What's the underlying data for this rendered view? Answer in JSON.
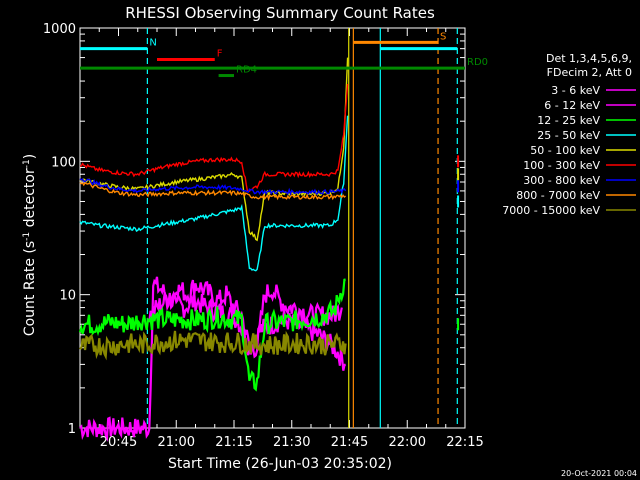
{
  "chart_data": {
    "type": "line",
    "title": "RHESSI Observing Summary Count Rates",
    "xlabel": "Start Time (26-Jun-03 20:35:02)",
    "ylabel_main": "Count Rate (s",
    "ylabel_sup1": "-1",
    "ylabel_mid": " detector",
    "ylabel_sup2": "-1",
    "ylabel_end": ")",
    "yscale": "log",
    "ylim": [
      1,
      1000
    ],
    "xlim_minutes": [
      0,
      100
    ],
    "x_ticks": [
      {
        "m": 10,
        "label": "20:45"
      },
      {
        "m": 25,
        "label": "21:00"
      },
      {
        "m": 40,
        "label": "21:15"
      },
      {
        "m": 55,
        "label": "21:30"
      },
      {
        "m": 70,
        "label": "21:45"
      },
      {
        "m": 85,
        "label": "22:00"
      },
      {
        "m": 100,
        "label": "22:15"
      }
    ],
    "y_ticks": [
      {
        "v": 1,
        "label": "1"
      },
      {
        "v": 10,
        "label": "10"
      },
      {
        "v": 100,
        "label": "100"
      },
      {
        "v": 1000,
        "label": "1000"
      }
    ],
    "legend_header": [
      "Det 1,3,4,5,6,9,",
      "FDecim 2, Att 0"
    ],
    "series": [
      {
        "name": "3 - 6 keV",
        "color": "#ff00ff",
        "x": [
          0,
          18,
          19,
          21,
          24,
          27,
          30,
          33,
          36,
          39,
          41,
          44,
          47,
          50,
          53,
          56,
          59,
          62,
          64,
          66,
          67.5,
          69
        ],
        "y": [
          1,
          1,
          12,
          11,
          9,
          8,
          9,
          8,
          7.5,
          7,
          6.5,
          4,
          5.5,
          6,
          6.5,
          6,
          5.5,
          5,
          4.5,
          4,
          3.5,
          3
        ]
      },
      {
        "name": "6 - 12 keV",
        "color": "#ff00ff",
        "x": [
          18,
          20,
          22,
          24,
          26,
          28,
          30,
          32,
          34,
          36,
          38,
          40,
          42,
          44,
          46,
          48,
          50,
          52,
          54,
          56,
          58,
          60,
          62,
          64,
          66,
          68
        ],
        "y": [
          7,
          8,
          9,
          10,
          11,
          10,
          12,
          11,
          10,
          9,
          10,
          8,
          7,
          4,
          4,
          10,
          11,
          9,
          8,
          8,
          7.5,
          7,
          7,
          7,
          7,
          8
        ]
      },
      {
        "name": "12 - 25 keV",
        "color": "#00ff00",
        "x": [
          0,
          4,
          8,
          12,
          16,
          20,
          24,
          28,
          32,
          36,
          40,
          42,
          44,
          46,
          48,
          50,
          54,
          58,
          62,
          66,
          68,
          69
        ],
        "y": [
          6,
          6,
          6.2,
          6,
          6.5,
          6.5,
          6.5,
          6.5,
          6.5,
          6.8,
          6.5,
          6.5,
          2.2,
          2.2,
          6,
          6.2,
          6.2,
          6.5,
          6.8,
          7.5,
          11,
          13
        ]
      },
      {
        "name": "25 - 50 keV",
        "color": "#00ffff",
        "x": [
          0,
          5,
          10,
          15,
          20,
          25,
          30,
          35,
          40,
          42,
          44,
          46,
          48,
          50,
          55,
          60,
          65,
          67,
          68.5,
          69.5
        ],
        "y": [
          35,
          33,
          32,
          31,
          33,
          35,
          37,
          40,
          43,
          45,
          16,
          15,
          33,
          33,
          33,
          33,
          33,
          37,
          70,
          220
        ]
      },
      {
        "name": "50 - 100 keV",
        "color": "#dddd00",
        "x": [
          0,
          5,
          10,
          15,
          20,
          25,
          30,
          35,
          40,
          42,
          44,
          46,
          48,
          50,
          55,
          60,
          65,
          67,
          68.5,
          69.5
        ],
        "y": [
          74,
          68,
          64,
          62,
          66,
          70,
          73,
          76,
          80,
          75,
          30,
          26,
          58,
          58,
          57,
          57,
          58,
          63,
          130,
          600
        ]
      },
      {
        "name": "100 - 300 keV",
        "color": "#ff0000",
        "x": [
          0,
          5,
          10,
          15,
          20,
          25,
          30,
          35,
          40,
          42,
          43.5,
          46,
          48,
          50,
          55,
          60,
          65,
          67,
          68.5,
          69.5
        ],
        "y": [
          95,
          86,
          82,
          80,
          88,
          95,
          100,
          103,
          103,
          100,
          60,
          65,
          80,
          80,
          80,
          80,
          80,
          85,
          160,
          380
        ]
      },
      {
        "name": "300 - 800 keV",
        "color": "#0000ff",
        "x": [
          0,
          5,
          10,
          15,
          20,
          25,
          30,
          35,
          40,
          42,
          44,
          46,
          48,
          50,
          55,
          60,
          65,
          68,
          69
        ],
        "y": [
          75,
          67,
          62,
          60,
          62,
          63,
          64,
          64,
          63,
          62,
          60,
          59,
          59,
          59,
          59,
          59,
          59,
          60,
          60
        ]
      },
      {
        "name": "800 - 7000 keV",
        "color": "#ff8800",
        "x": [
          0,
          5,
          10,
          15,
          20,
          25,
          30,
          35,
          40,
          42,
          44,
          46,
          48,
          50,
          55,
          60,
          65,
          68,
          69
        ],
        "y": [
          70,
          63,
          58,
          56,
          57,
          58,
          58,
          58,
          58,
          57,
          55,
          54,
          54,
          54,
          54,
          54,
          54,
          55,
          55
        ]
      },
      {
        "name": "7000 - 15000 keV",
        "color": "#888800",
        "x": [
          0,
          4,
          8,
          12,
          16,
          20,
          24,
          28,
          32,
          36,
          40,
          44,
          48,
          52,
          56,
          60,
          64,
          68,
          69
        ],
        "y": [
          4,
          4.2,
          4.1,
          4.3,
          4.2,
          4.4,
          4.5,
          4.6,
          4.5,
          4.4,
          4.4,
          4.3,
          4.2,
          4.2,
          4.3,
          4.3,
          4.2,
          4.3,
          4.3
        ]
      }
    ],
    "state_bars": [
      {
        "label": "N",
        "color": "#00ffff",
        "x0": 0,
        "x1": 17.5,
        "value": 700
      },
      {
        "label": "",
        "color": "#00ffff",
        "x0": 78,
        "x1": 98,
        "value": 700
      },
      {
        "label": "F",
        "color": "#ff0000",
        "x0": 20,
        "x1": 35,
        "value": 580
      },
      {
        "label": "RD0",
        "color": "#008800",
        "x0": 0,
        "x1": 100,
        "value": 500
      },
      {
        "label": "RD4",
        "color": "#008800",
        "x0": 36,
        "x1": 40,
        "value": 440
      },
      {
        "label": "S",
        "color": "#ff8800",
        "x0": 71,
        "x1": 93,
        "value": 780
      }
    ],
    "verticals": [
      {
        "m": 17.5,
        "color": "#00ffff",
        "style": "dashed"
      },
      {
        "m": 69.8,
        "color": "#dddd00",
        "style": "solid"
      },
      {
        "m": 71,
        "color": "#ff8800",
        "style": "solid"
      },
      {
        "m": 78,
        "color": "#00ffff",
        "style": "solid"
      },
      {
        "m": 93,
        "color": "#ff8800",
        "style": "dashed"
      },
      {
        "m": 98,
        "color": "#00ffff",
        "style": "dashed"
      }
    ],
    "right_stubs": [
      {
        "m": 98.2,
        "y": 100,
        "color": "#ff0000"
      },
      {
        "m": 98.2,
        "y": 80,
        "color": "#dddd00"
      },
      {
        "m": 98.2,
        "y": 65,
        "color": "#0000ff"
      },
      {
        "m": 98.2,
        "y": 50,
        "color": "#00ffff"
      },
      {
        "m": 98.2,
        "y": 6,
        "color": "#00ff00"
      }
    ],
    "timestamp": "20-Oct-2021 00:04",
    "grid": false,
    "legend_placement": "right"
  }
}
